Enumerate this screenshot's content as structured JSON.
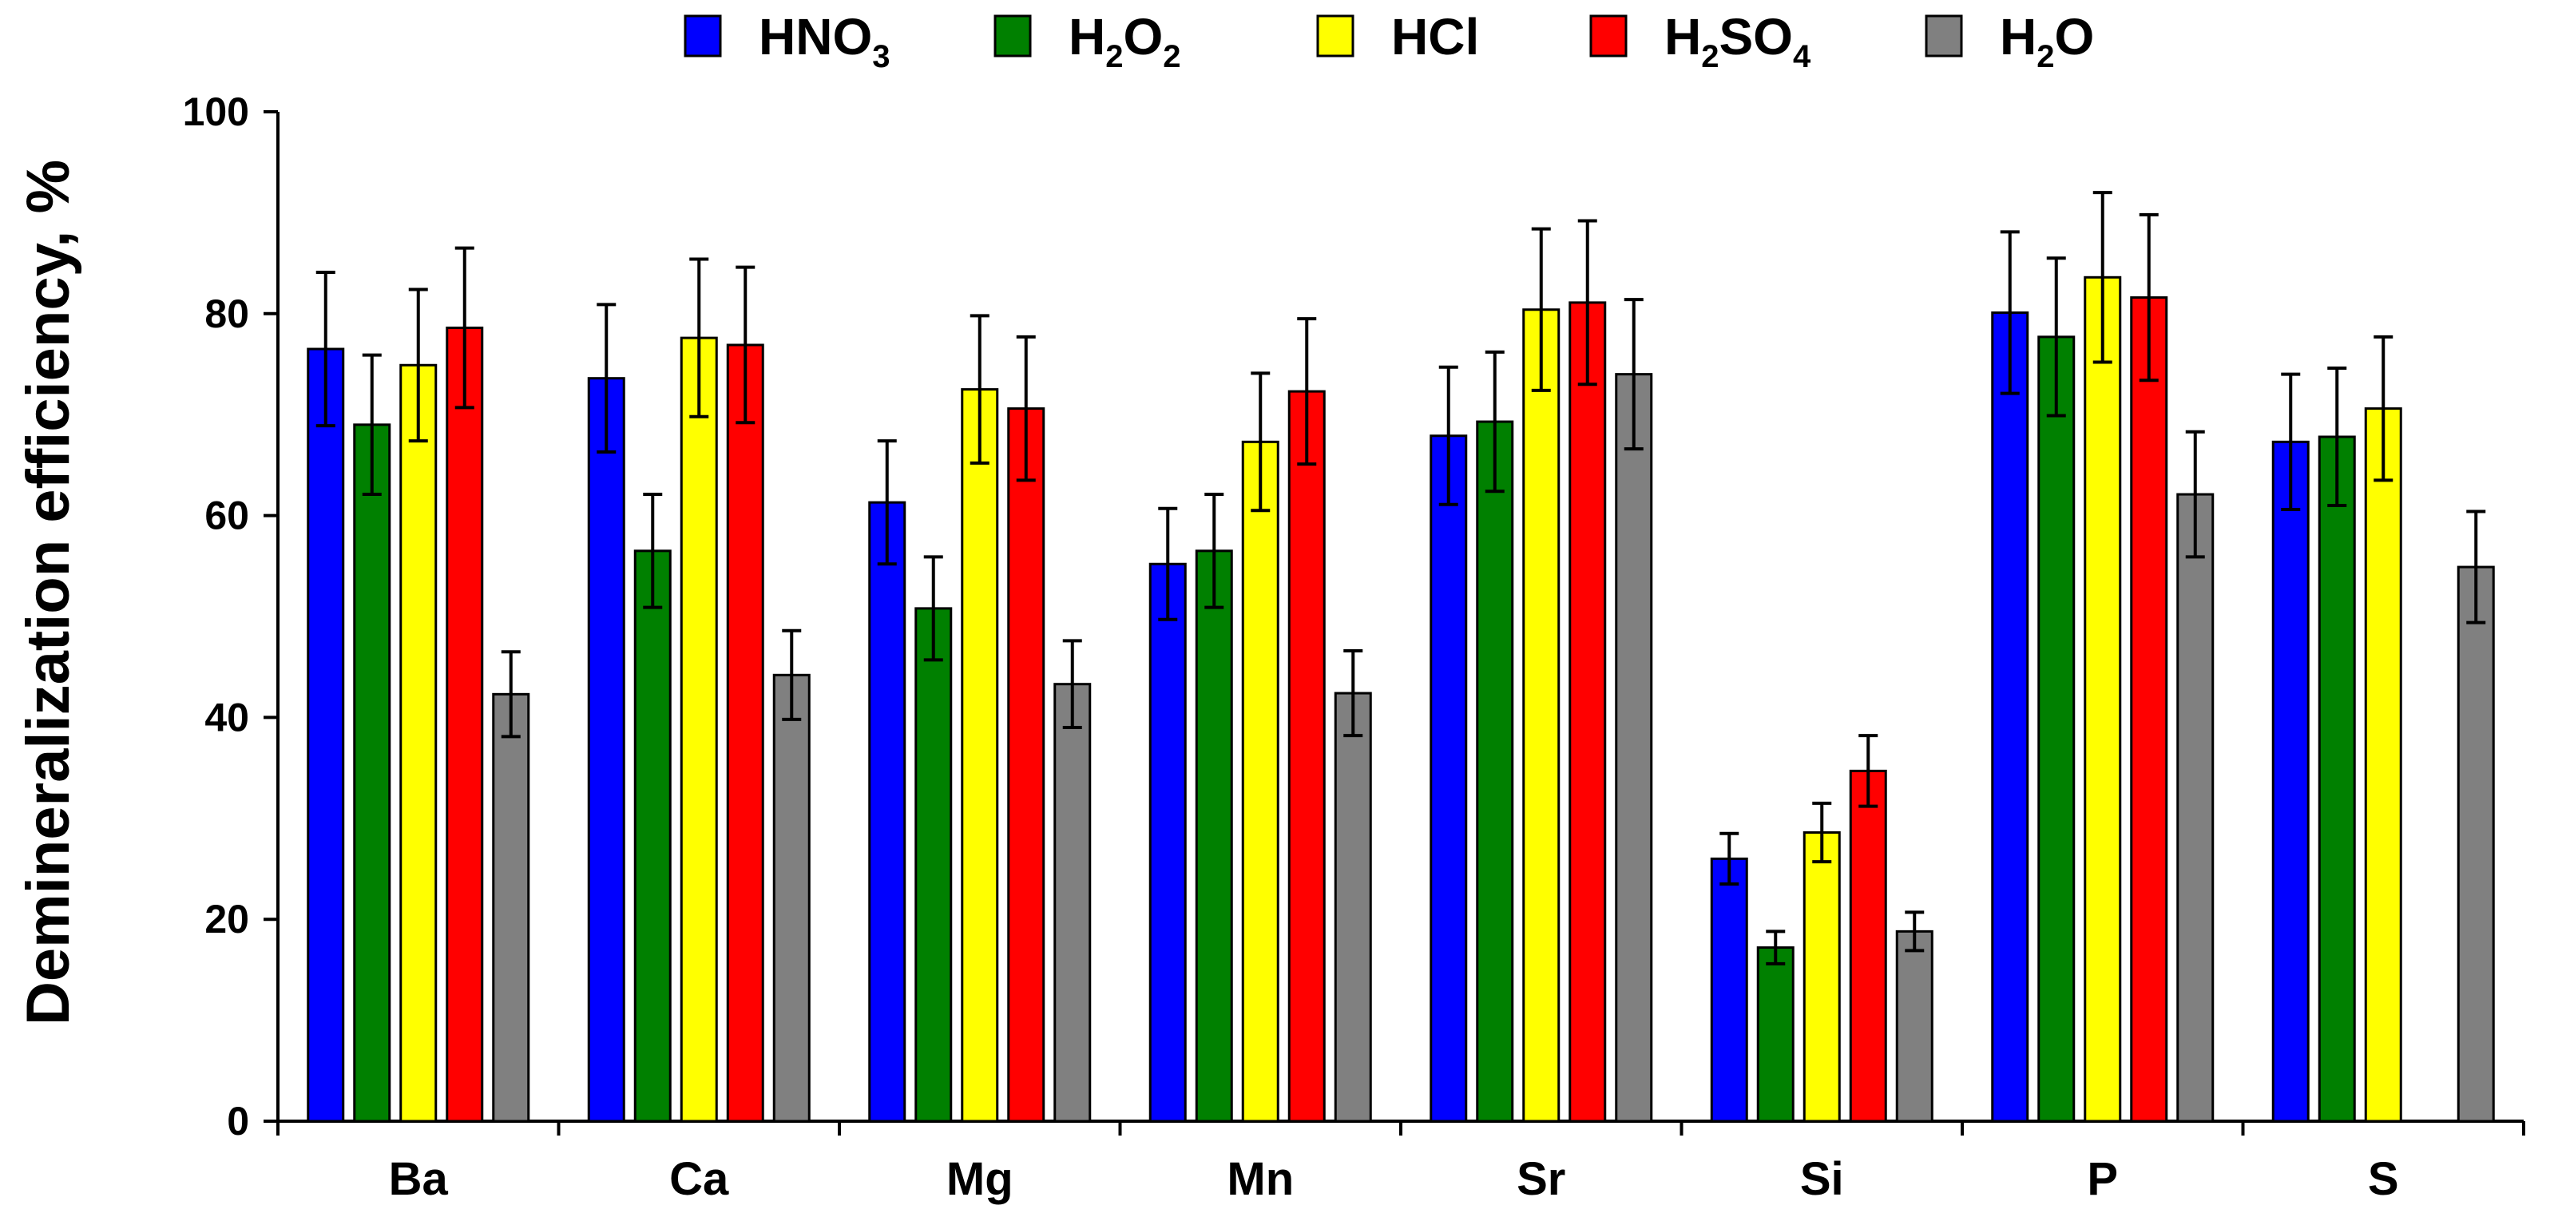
{
  "chart_data": {
    "type": "bar",
    "title": "",
    "xlabel": "",
    "ylabel": "Demineralization efficiency, %",
    "ylim": [
      0,
      100
    ],
    "yticks": [
      0,
      20,
      40,
      60,
      80,
      100
    ],
    "categories": [
      "Ba",
      "Ca",
      "Mg",
      "Mn",
      "Sr",
      "Si",
      "P",
      "S"
    ],
    "series": [
      {
        "name": "HNO3",
        "label_parts": [
          [
            "HNO",
            false
          ],
          [
            "3",
            true
          ]
        ],
        "color": "#0000ff",
        "values": [
          76.5,
          73.6,
          61.3,
          55.2,
          67.9,
          26.0,
          80.1,
          67.3
        ],
        "errors": [
          7.6,
          7.3,
          6.1,
          5.5,
          6.8,
          2.5,
          8.0,
          6.7
        ]
      },
      {
        "name": "H2O2",
        "label_parts": [
          [
            "H",
            false
          ],
          [
            "2",
            true
          ],
          [
            "O",
            false
          ],
          [
            "2",
            true
          ]
        ],
        "color": "#008000",
        "values": [
          69.0,
          56.5,
          50.8,
          56.5,
          69.3,
          17.2,
          77.7,
          67.8
        ],
        "errors": [
          6.9,
          5.6,
          5.1,
          5.6,
          6.9,
          1.6,
          7.8,
          6.8
        ]
      },
      {
        "name": "HCl",
        "label_parts": [
          [
            "HCl",
            false
          ]
        ],
        "color": "#ffff00",
        "values": [
          74.9,
          77.6,
          72.5,
          67.3,
          80.4,
          28.6,
          83.6,
          70.6
        ],
        "errors": [
          7.5,
          7.8,
          7.3,
          6.8,
          8.0,
          2.9,
          8.4,
          7.1
        ]
      },
      {
        "name": "H2SO4",
        "label_parts": [
          [
            "H",
            false
          ],
          [
            "2",
            true
          ],
          [
            "SO",
            false
          ],
          [
            "4",
            true
          ]
        ],
        "color": "#ff0000",
        "values": [
          78.6,
          76.9,
          70.6,
          72.3,
          81.1,
          34.7,
          81.6,
          null
        ],
        "errors": [
          7.9,
          7.7,
          7.1,
          7.2,
          8.1,
          3.5,
          8.2,
          null
        ]
      },
      {
        "name": "H2O",
        "label_parts": [
          [
            "H",
            false
          ],
          [
            "2",
            true
          ],
          [
            "O",
            false
          ]
        ],
        "color": "#808080",
        "values": [
          42.3,
          44.2,
          43.3,
          42.4,
          74.0,
          18.8,
          62.1,
          54.9
        ],
        "errors": [
          4.2,
          4.4,
          4.3,
          4.2,
          7.4,
          1.9,
          6.2,
          5.5
        ]
      }
    ],
    "legend_position": "top",
    "grid": false
  }
}
